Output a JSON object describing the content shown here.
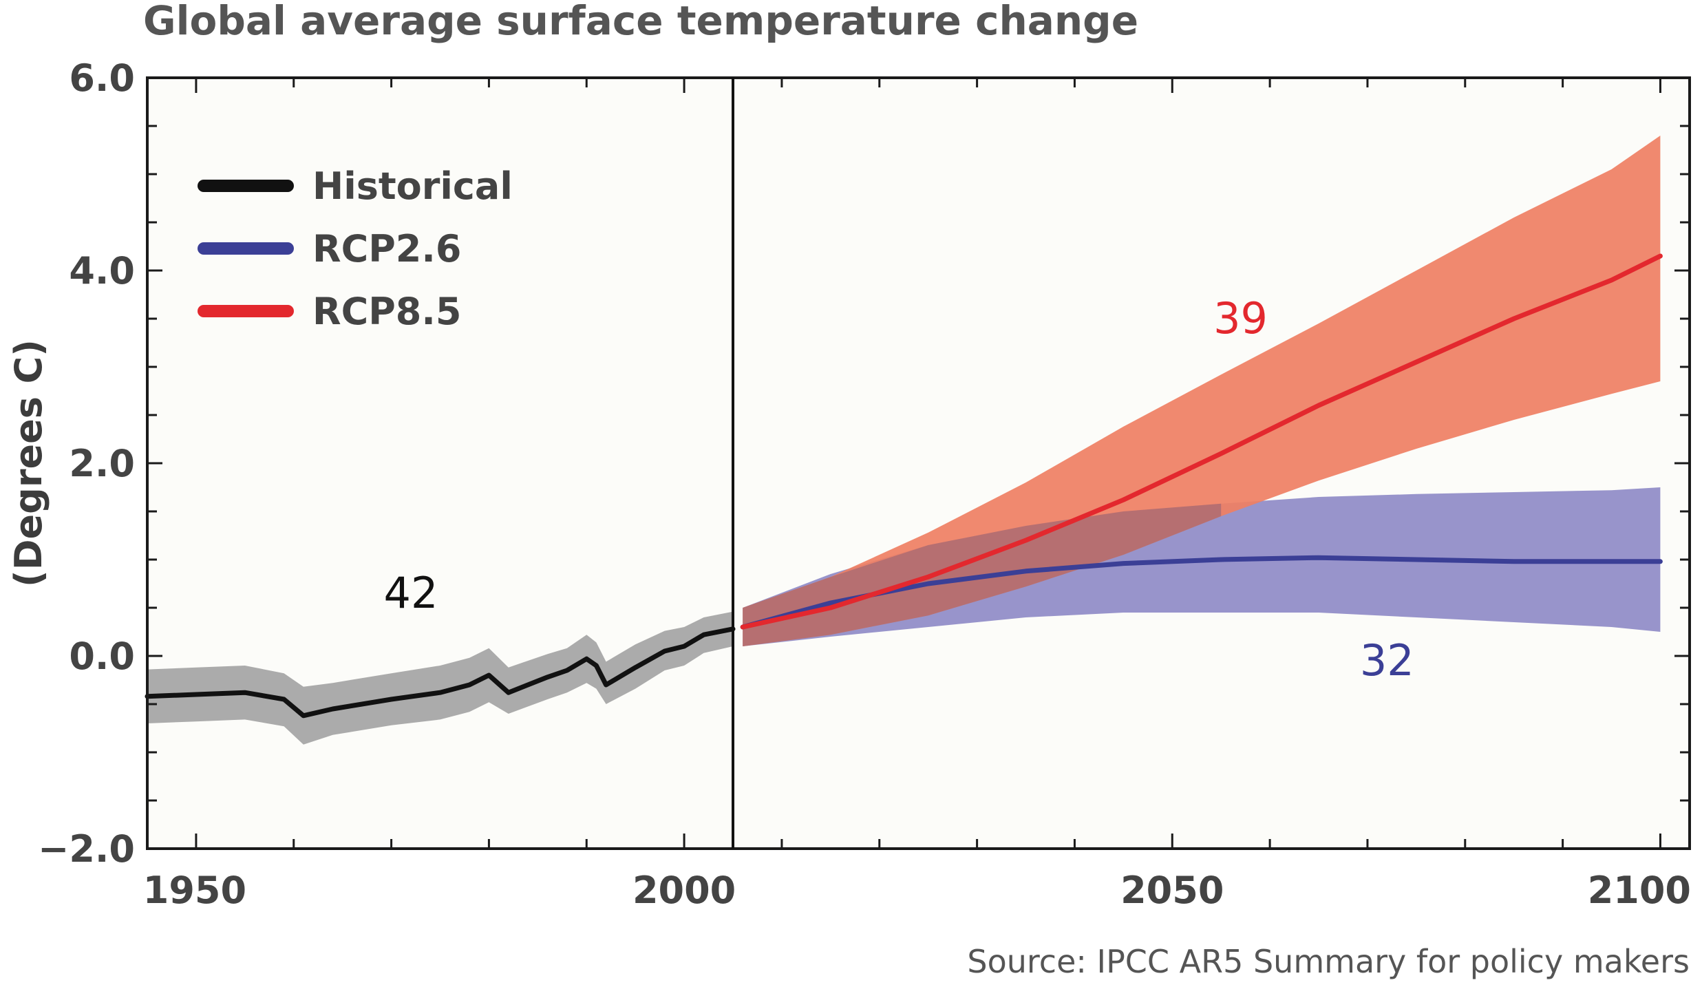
{
  "title": "Global average surface temperature change",
  "source": "Source: IPCC AR5 Summary for policy makers",
  "colors": {
    "historical_line": "#111111",
    "historical_band": "#a4a4a4",
    "rcp26_line": "#3b3f96",
    "rcp26_band": "#8f8bc7",
    "rcp85_line": "#e3282e",
    "rcp85_band": "#ef7f63",
    "overlap_band": "#a56a73",
    "count_rcp85": "#e3282e",
    "count_rcp26": "#3b3f96"
  },
  "chart_data": {
    "type": "line",
    "title": "Global average surface temperature change",
    "xlabel": "",
    "ylabel": "(Degrees C)",
    "xlim": [
      1945,
      2103
    ],
    "ylim": [
      -2.0,
      6.0
    ],
    "x_ticks": [
      "1950",
      "2000",
      "2050",
      "2100"
    ],
    "y_ticks": [
      "6.0",
      "4.0",
      "2.0",
      "0.0",
      "−2.0"
    ],
    "divider_x": 2005,
    "legend": {
      "position": "top-left",
      "entries": [
        "Historical",
        "RCP2.6",
        "RCP8.5"
      ]
    },
    "series": [
      {
        "name": "Historical",
        "color": "#111111",
        "band_color": "#a4a4a4",
        "x": [
          1945,
          1950,
          1955,
          1959,
          1961,
          1964,
          1970,
          1975,
          1978,
          1980,
          1982,
          1986,
          1988,
          1990,
          1991,
          1992,
          1995,
          1998,
          2000,
          2002,
          2005
        ],
        "y": [
          -0.42,
          -0.4,
          -0.38,
          -0.45,
          -0.62,
          -0.55,
          -0.45,
          -0.38,
          -0.3,
          -0.2,
          -0.38,
          -0.22,
          -0.15,
          -0.03,
          -0.1,
          -0.3,
          -0.12,
          0.05,
          0.1,
          0.22,
          0.28
        ],
        "low": [
          -0.7,
          -0.68,
          -0.66,
          -0.73,
          -0.92,
          -0.82,
          -0.72,
          -0.66,
          -0.58,
          -0.48,
          -0.6,
          -0.45,
          -0.38,
          -0.28,
          -0.34,
          -0.5,
          -0.34,
          -0.15,
          -0.1,
          0.03,
          0.1
        ],
        "high": [
          -0.14,
          -0.12,
          -0.1,
          -0.18,
          -0.32,
          -0.28,
          -0.18,
          -0.1,
          -0.02,
          0.08,
          -0.12,
          0.02,
          0.08,
          0.22,
          0.14,
          -0.06,
          0.12,
          0.26,
          0.3,
          0.4,
          0.46
        ],
        "count": "42",
        "count_at": [
          1972,
          0.5
        ]
      },
      {
        "name": "RCP2.6",
        "color": "#3b3f96",
        "band_color": "#8f8bc7",
        "x": [
          2006,
          2015,
          2025,
          2035,
          2045,
          2055,
          2065,
          2075,
          2085,
          2095,
          2100
        ],
        "y": [
          0.3,
          0.55,
          0.75,
          0.88,
          0.96,
          1.0,
          1.02,
          1.0,
          0.98,
          0.98,
          0.98
        ],
        "low": [
          0.1,
          0.2,
          0.3,
          0.4,
          0.45,
          0.45,
          0.45,
          0.4,
          0.35,
          0.3,
          0.25
        ],
        "high": [
          0.5,
          0.85,
          1.15,
          1.35,
          1.5,
          1.58,
          1.65,
          1.68,
          1.7,
          1.72,
          1.75
        ],
        "count": "32",
        "count_at": [
          2072,
          -0.2
        ]
      },
      {
        "name": "RCP8.5",
        "color": "#e3282e",
        "band_color": "#ef7f63",
        "x": [
          2006,
          2015,
          2025,
          2035,
          2045,
          2055,
          2065,
          2075,
          2085,
          2095,
          2100
        ],
        "y": [
          0.3,
          0.5,
          0.82,
          1.2,
          1.62,
          2.1,
          2.6,
          3.05,
          3.5,
          3.9,
          4.15
        ],
        "low": [
          0.1,
          0.22,
          0.42,
          0.72,
          1.05,
          1.45,
          1.82,
          2.15,
          2.45,
          2.72,
          2.85
        ],
        "high": [
          0.5,
          0.82,
          1.28,
          1.8,
          2.38,
          2.92,
          3.45,
          4.0,
          4.55,
          5.05,
          5.4
        ],
        "count": "39",
        "count_at": [
          2057,
          3.35
        ]
      }
    ]
  }
}
